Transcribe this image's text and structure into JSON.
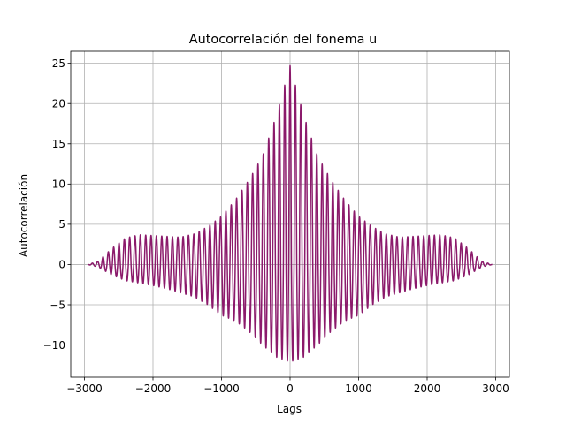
{
  "chart_data": {
    "type": "line",
    "title": "Autocorrelación del fonema u",
    "xlabel": "Lags",
    "ylabel": "Autocorrelación",
    "xlim": [
      -3200,
      3200
    ],
    "ylim": [
      -14,
      26.5
    ],
    "xticks": [
      -3000,
      -2000,
      -1000,
      0,
      1000,
      2000,
      3000
    ],
    "xtick_labels": [
      "−3000",
      "−2000",
      "−1000",
      "0",
      "1000",
      "2000",
      "3000"
    ],
    "yticks": [
      -10,
      -5,
      0,
      5,
      10,
      15,
      20,
      25
    ],
    "ytick_labels": [
      "−10",
      "−5",
      "0",
      "5",
      "10",
      "15",
      "20",
      "25"
    ],
    "grid": true,
    "series": [
      {
        "color": "#8b1a6b",
        "lag_range": [
          -2950,
          2950
        ],
        "oscillation_period": 78,
        "x": [
          -2950,
          -2800,
          -2600,
          -2400,
          -2200,
          -2000,
          -1800,
          -1600,
          -1400,
          -1200,
          -1000,
          -800,
          -600,
          -400,
          -200,
          0,
          200,
          400,
          600,
          800,
          1000,
          1200,
          1400,
          1600,
          1800,
          2000,
          2200,
          2400,
          2600,
          2800,
          2950
        ],
        "upper_envelope": [
          0,
          0.4,
          2.0,
          3.3,
          3.7,
          3.6,
          3.5,
          3.4,
          3.8,
          4.7,
          6.0,
          8.0,
          10.5,
          13.5,
          18.5,
          24.7,
          18.5,
          13.5,
          10.5,
          8.0,
          6.0,
          4.7,
          3.8,
          3.4,
          3.5,
          3.6,
          3.7,
          3.3,
          2.0,
          0.4,
          0
        ],
        "lower_envelope": [
          0,
          -0.3,
          -1.3,
          -2.0,
          -2.3,
          -2.6,
          -3.0,
          -3.5,
          -4.0,
          -5.0,
          -6.3,
          -7.0,
          -8.3,
          -10.0,
          -11.5,
          -12.1,
          -11.5,
          -10.0,
          -8.3,
          -7.0,
          -6.3,
          -5.0,
          -4.0,
          -3.5,
          -3.0,
          -2.6,
          -2.3,
          -2.0,
          -1.3,
          -0.3,
          0
        ]
      }
    ]
  }
}
